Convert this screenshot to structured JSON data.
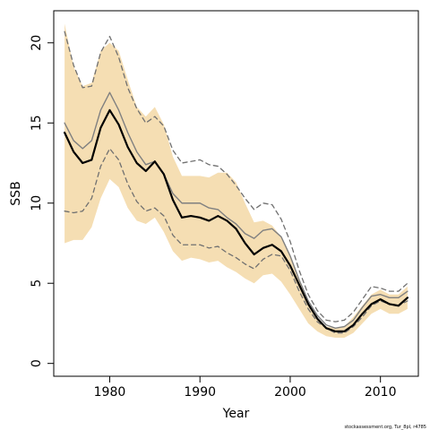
{
  "chart_data": {
    "type": "line",
    "xlabel": "Year",
    "ylabel": "SSB",
    "xlim": [
      1973.8,
      2014.2
    ],
    "ylim": [
      -0.8,
      22
    ],
    "x_ticks": [
      1980,
      1990,
      2000,
      2010
    ],
    "y_ticks": [
      0,
      5,
      10,
      15,
      20
    ],
    "grid": false,
    "legend": "none",
    "footnote": "stockassessment.org, Tur_8pl, r4785",
    "x": [
      1975,
      1976,
      1977,
      1978,
      1979,
      1980,
      1981,
      1982,
      1983,
      1984,
      1985,
      1986,
      1987,
      1988,
      1989,
      1990,
      1991,
      1992,
      1993,
      1994,
      1995,
      1996,
      1997,
      1998,
      1999,
      2000,
      2001,
      2002,
      2003,
      2004,
      2005,
      2006,
      2007,
      2008,
      2009,
      2010,
      2011,
      2012,
      2013
    ],
    "bands": [
      {
        "role": "confidence-interval-current",
        "color": "#f5deb3",
        "lower": [
          7.5,
          7.7,
          7.7,
          8.5,
          10.3,
          11.5,
          11.0,
          9.7,
          8.9,
          8.7,
          9.1,
          8.2,
          7.0,
          6.4,
          6.6,
          6.5,
          6.3,
          6.4,
          6.0,
          5.7,
          5.3,
          5.0,
          5.5,
          5.6,
          5.1,
          4.3,
          3.4,
          2.5,
          2.0,
          1.7,
          1.6,
          1.6,
          1.9,
          2.5,
          3.1,
          3.4,
          3.1,
          3.1,
          3.4
        ],
        "upper": [
          21.2,
          18.5,
          17.3,
          17.5,
          19.5,
          20.0,
          19.5,
          17.7,
          16.0,
          15.4,
          16.0,
          14.9,
          12.9,
          11.7,
          11.7,
          11.7,
          11.6,
          11.9,
          11.9,
          11.3,
          10.0,
          8.8,
          8.9,
          8.6,
          7.9,
          6.8,
          5.3,
          3.8,
          2.8,
          2.3,
          2.2,
          2.3,
          2.9,
          3.6,
          4.3,
          4.6,
          4.3,
          4.3,
          4.8
        ]
      }
    ],
    "series": [
      {
        "role": "estimate-current",
        "color": "#000000",
        "dash": "solid",
        "width": 2.2,
        "values": [
          14.4,
          13.2,
          12.5,
          12.7,
          14.7,
          15.8,
          14.9,
          13.5,
          12.5,
          12.0,
          12.6,
          11.8,
          10.2,
          9.1,
          9.2,
          9.1,
          8.9,
          9.2,
          8.9,
          8.4,
          7.5,
          6.8,
          7.2,
          7.4,
          7.0,
          6.1,
          4.9,
          3.7,
          2.8,
          2.2,
          2.0,
          2.0,
          2.4,
          3.1,
          3.7,
          4.0,
          3.7,
          3.6,
          4.1
        ]
      },
      {
        "role": "estimate-previous",
        "color": "#808080",
        "dash": "solid",
        "width": 1.4,
        "values": [
          15.0,
          13.9,
          13.4,
          13.9,
          15.8,
          16.9,
          15.8,
          14.4,
          13.2,
          12.4,
          12.6,
          11.8,
          10.6,
          10.0,
          10.0,
          10.0,
          9.7,
          9.6,
          9.1,
          8.7,
          8.1,
          7.8,
          8.3,
          8.4,
          7.9,
          6.7,
          5.2,
          3.9,
          3.0,
          2.4,
          2.2,
          2.3,
          2.7,
          3.5,
          4.2,
          4.3,
          4.1,
          4.1,
          4.5
        ]
      },
      {
        "role": "ci-upper-previous",
        "color": "#707070",
        "dash": "dashed",
        "width": 1.3,
        "values": [
          20.7,
          18.6,
          17.2,
          17.3,
          19.4,
          20.4,
          19.1,
          17.2,
          15.9,
          15.0,
          15.4,
          14.8,
          13.3,
          12.5,
          12.6,
          12.7,
          12.4,
          12.3,
          11.8,
          11.1,
          10.3,
          9.6,
          10.0,
          9.9,
          9.0,
          7.6,
          5.8,
          4.3,
          3.3,
          2.7,
          2.6,
          2.7,
          3.2,
          4.0,
          4.8,
          4.7,
          4.5,
          4.5,
          5.0
        ]
      },
      {
        "role": "ci-lower-previous",
        "color": "#707070",
        "dash": "dashed",
        "width": 1.3,
        "values": [
          9.5,
          9.4,
          9.5,
          10.3,
          12.3,
          13.4,
          12.7,
          11.2,
          10.1,
          9.5,
          9.7,
          9.2,
          8.0,
          7.4,
          7.4,
          7.4,
          7.2,
          7.3,
          6.9,
          6.6,
          6.2,
          5.9,
          6.5,
          6.8,
          6.7,
          5.8,
          4.5,
          3.4,
          2.6,
          2.2,
          1.9,
          1.9,
          2.3,
          2.9,
          3.6,
          3.9,
          3.7,
          3.6,
          3.9
        ]
      }
    ]
  }
}
